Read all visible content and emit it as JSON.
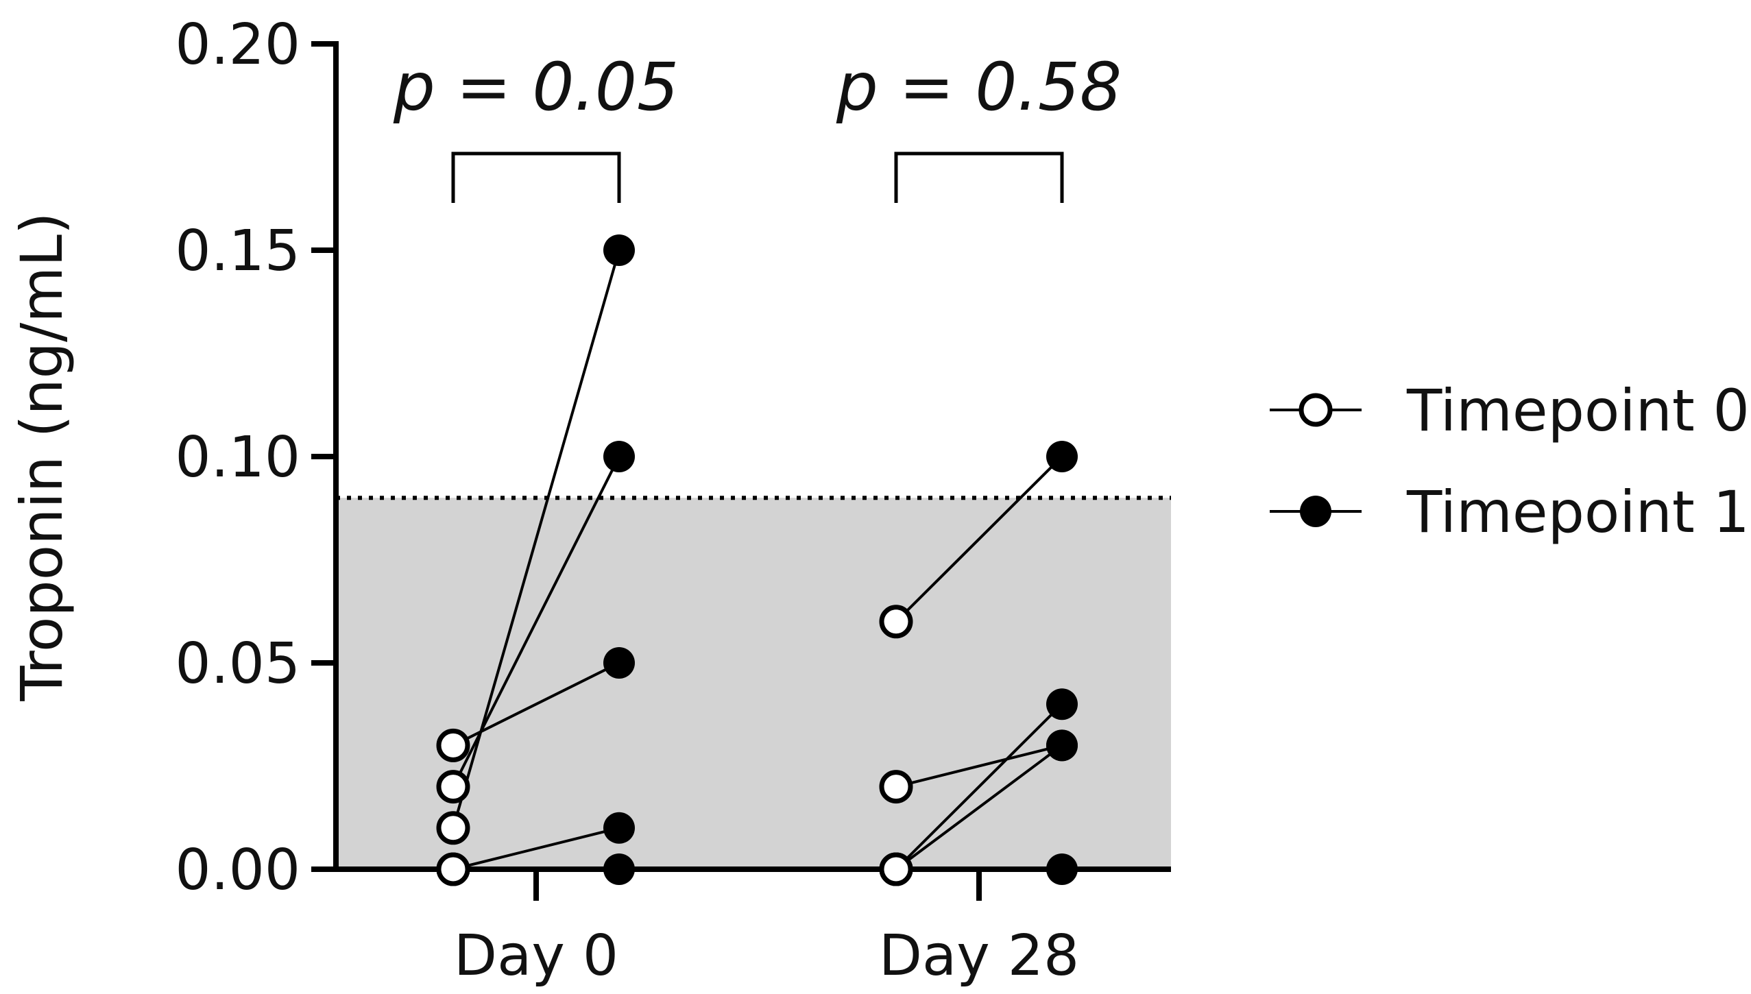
{
  "chart_data": {
    "type": "scatter",
    "title": "",
    "xlabel": "",
    "ylabel": "Troponin (ng/mL)",
    "ylim": [
      0,
      0.2
    ],
    "yticks": [
      "0.00",
      "0.05",
      "0.10",
      "0.15",
      "0.20"
    ],
    "categories": [
      "Day 0",
      "Day 28"
    ],
    "reference_band": {
      "from": 0,
      "to": 0.09,
      "color": "#d3d3d3",
      "line_style": "dotted"
    },
    "legend": {
      "placement": "right",
      "entries": [
        {
          "label": "Timepoint 0",
          "marker": "open-circle"
        },
        {
          "label": "Timepoint 1",
          "marker": "filled-circle"
        }
      ]
    },
    "series": [
      {
        "name": "Timepoint 0",
        "marker": "open-circle"
      },
      {
        "name": "Timepoint 1",
        "marker": "filled-circle"
      }
    ],
    "groups": [
      {
        "category": "Day 0",
        "p_label": "p = 0.05",
        "pairs": [
          {
            "t0": 0.03,
            "t1": 0.05
          },
          {
            "t0": 0.02,
            "t1": 0.1
          },
          {
            "t0": 0.01,
            "t1": 0.15
          },
          {
            "t0": 0.0,
            "t1": 0.01
          },
          {
            "t0": 0.0,
            "t1": 0.0
          }
        ]
      },
      {
        "category": "Day 28",
        "p_label": "p = 0.58",
        "pairs": [
          {
            "t0": 0.06,
            "t1": 0.1
          },
          {
            "t0": 0.02,
            "t1": 0.03
          },
          {
            "t0": 0.0,
            "t1": 0.04
          },
          {
            "t0": 0.0,
            "t1": 0.03
          },
          {
            "t0": 0.0,
            "t1": 0.0
          }
        ]
      }
    ],
    "colors": {
      "marker": "#000000",
      "band": "#d3d3d3",
      "axis": "#000000"
    }
  }
}
